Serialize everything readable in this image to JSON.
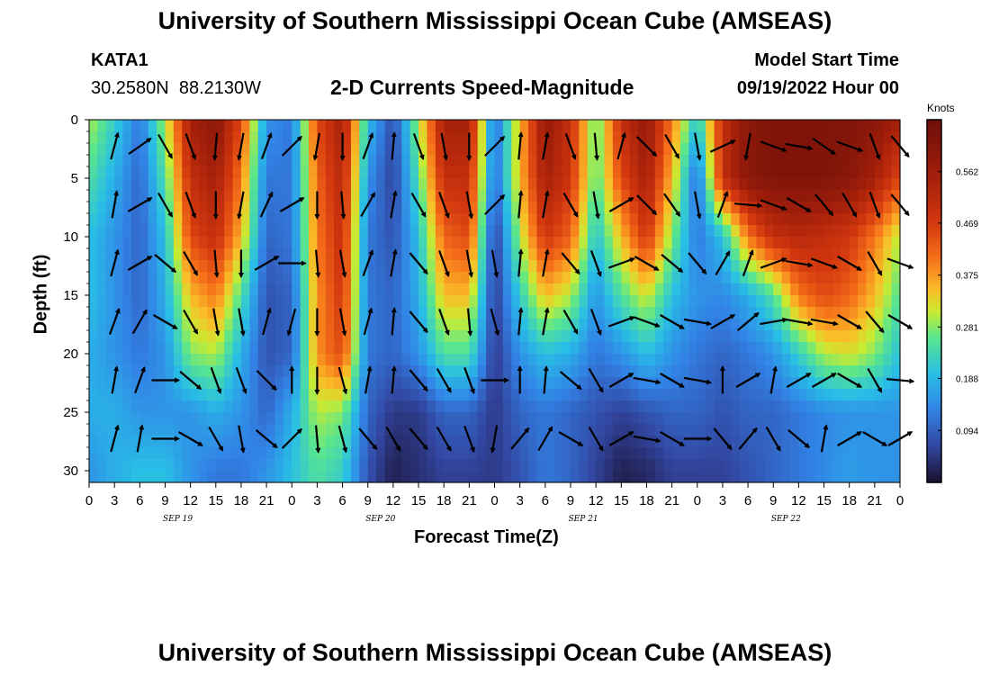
{
  "page": {
    "title": "University of Southern Mississippi Ocean Cube (AMSEAS)",
    "station_id": "KATA1",
    "station_coords": "30.2580N  88.2130W",
    "subtitle": "2-D Currents Speed-Magnitude",
    "model_start_label": "Model Start Time",
    "model_start_value": "09/19/2022 Hour 00",
    "bottom_title": "University of Southern Mississippi Ocean Cube (AMSEAS)"
  },
  "chart_data": {
    "type": "heatmap",
    "title": "2-D Currents Speed-Magnitude",
    "xlabel": "Forecast Time(Z)",
    "ylabel": "Depth (ft)",
    "x_unit": "hours since 09/19/2022 00Z",
    "xlim": [
      0,
      96
    ],
    "ylim": [
      0,
      31
    ],
    "y_inverted": true,
    "x_ticks": [
      0,
      3,
      6,
      9,
      12,
      15,
      18,
      21,
      24,
      27,
      30,
      33,
      36,
      39,
      42,
      45,
      48,
      51,
      54,
      57,
      60,
      63,
      66,
      69,
      72,
      75,
      78,
      81,
      84,
      87,
      90,
      93,
      96
    ],
    "x_tick_labels": [
      "0",
      "3",
      "6",
      "9",
      "12",
      "15",
      "18",
      "21",
      "0",
      "3",
      "6",
      "9",
      "12",
      "15",
      "18",
      "21",
      "0",
      "3",
      "6",
      "9",
      "12",
      "15",
      "18",
      "21",
      "0",
      "3",
      "6",
      "9",
      "12",
      "15",
      "18",
      "21",
      "0"
    ],
    "y_ticks": [
      0,
      5,
      10,
      15,
      20,
      25,
      30
    ],
    "y_tick_labels": [
      "0",
      "5",
      "10",
      "15",
      "20",
      "25",
      "30"
    ],
    "day_labels": [
      {
        "label": "SEP 19",
        "x": 10.5
      },
      {
        "label": "SEP 20",
        "x": 34.5
      },
      {
        "label": "SEP 21",
        "x": 58.5
      },
      {
        "label": "SEP 22",
        "x": 82.5
      }
    ],
    "colorbar": {
      "unit_label": "Knots",
      "min": 0,
      "max": 0.656,
      "ticks": [
        0.094,
        0.188,
        0.281,
        0.375,
        0.469,
        0.562
      ],
      "tick_labels": [
        "0.094",
        "0.188",
        "0.281",
        "0.375",
        "0.469",
        "0.562"
      ]
    },
    "speed_field": {
      "description": "approximate current speed (knots) sampled every 3 h (columns) at depths 0,5,10,15,20,25,30 ft (rows)",
      "times": [
        0,
        3,
        6,
        9,
        12,
        15,
        18,
        21,
        24,
        27,
        30,
        33,
        36,
        39,
        42,
        45,
        48,
        51,
        54,
        57,
        60,
        63,
        66,
        69,
        72,
        75,
        78,
        81,
        84,
        87,
        90,
        93,
        96
      ],
      "depths": [
        0,
        5,
        10,
        15,
        20,
        25,
        30
      ],
      "values": [
        [
          0.3,
          0.22,
          0.12,
          0.3,
          0.55,
          0.6,
          0.45,
          0.15,
          0.12,
          0.45,
          0.55,
          0.2,
          0.07,
          0.3,
          0.55,
          0.55,
          0.1,
          0.35,
          0.58,
          0.5,
          0.25,
          0.5,
          0.58,
          0.4,
          0.2,
          0.5,
          0.6,
          0.62,
          0.62,
          0.62,
          0.62,
          0.6,
          0.55
        ],
        [
          0.25,
          0.18,
          0.1,
          0.25,
          0.5,
          0.55,
          0.4,
          0.12,
          0.12,
          0.42,
          0.52,
          0.15,
          0.06,
          0.25,
          0.5,
          0.5,
          0.1,
          0.35,
          0.55,
          0.48,
          0.25,
          0.45,
          0.55,
          0.35,
          0.1,
          0.5,
          0.6,
          0.62,
          0.62,
          0.62,
          0.6,
          0.55,
          0.45
        ],
        [
          0.2,
          0.15,
          0.1,
          0.2,
          0.45,
          0.5,
          0.35,
          0.1,
          0.12,
          0.4,
          0.5,
          0.12,
          0.08,
          0.2,
          0.42,
          0.45,
          0.05,
          0.3,
          0.48,
          0.42,
          0.2,
          0.35,
          0.48,
          0.28,
          0.12,
          0.2,
          0.4,
          0.5,
          0.52,
          0.5,
          0.48,
          0.4,
          0.3
        ],
        [
          0.2,
          0.15,
          0.1,
          0.18,
          0.35,
          0.4,
          0.25,
          0.08,
          0.1,
          0.38,
          0.48,
          0.12,
          0.1,
          0.18,
          0.35,
          0.35,
          0.05,
          0.22,
          0.35,
          0.3,
          0.15,
          0.25,
          0.32,
          0.2,
          0.15,
          0.14,
          0.18,
          0.25,
          0.4,
          0.45,
          0.42,
          0.35,
          0.25
        ],
        [
          0.18,
          0.15,
          0.12,
          0.15,
          0.28,
          0.3,
          0.18,
          0.08,
          0.1,
          0.38,
          0.45,
          0.12,
          0.1,
          0.15,
          0.25,
          0.25,
          0.05,
          0.15,
          0.2,
          0.18,
          0.12,
          0.15,
          0.2,
          0.15,
          0.12,
          0.1,
          0.12,
          0.15,
          0.22,
          0.3,
          0.32,
          0.28,
          0.2
        ],
        [
          0.18,
          0.18,
          0.15,
          0.15,
          0.15,
          0.18,
          0.15,
          0.1,
          0.18,
          0.3,
          0.28,
          0.1,
          0.05,
          0.05,
          0.1,
          0.1,
          0.05,
          0.1,
          0.12,
          0.1,
          0.08,
          0.06,
          0.08,
          0.1,
          0.1,
          0.08,
          0.1,
          0.1,
          0.12,
          0.14,
          0.15,
          0.15,
          0.15
        ],
        [
          0.15,
          0.18,
          0.2,
          0.2,
          0.15,
          0.12,
          0.12,
          0.15,
          0.2,
          0.25,
          0.22,
          0.08,
          0.02,
          0.04,
          0.06,
          0.06,
          0.05,
          0.08,
          0.12,
          0.1,
          0.06,
          0.02,
          0.03,
          0.06,
          0.06,
          0.06,
          0.08,
          0.1,
          0.12,
          0.14,
          0.16,
          0.15,
          0.15
        ]
      ]
    },
    "arrow_times": [
      3,
      6,
      9,
      12,
      15,
      18,
      21,
      24,
      27,
      30,
      33,
      36,
      39,
      42,
      45,
      48,
      51,
      54,
      57,
      60,
      63,
      66,
      69,
      72,
      75,
      78,
      81,
      84,
      87,
      90,
      93,
      96
    ],
    "arrow_depths": [
      1.5,
      6.5,
      11.5,
      16.5,
      21.5,
      26.5
    ],
    "arrow_directions_deg": {
      "description": "current flow direction, degrees clockwise from north (0 = up on plot)",
      "rows": [
        [
          15,
          55,
          150,
          160,
          185,
          190,
          20,
          45,
          190,
          180,
          20,
          5,
          160,
          170,
          180,
          45,
          5,
          10,
          160,
          175,
          15,
          135,
          150,
          170,
          65,
          190,
          110,
          100,
          125,
          110,
          160,
          140
        ],
        [
          10,
          60,
          150,
          160,
          180,
          190,
          25,
          60,
          180,
          175,
          30,
          10,
          150,
          160,
          170,
          45,
          5,
          10,
          150,
          170,
          60,
          135,
          145,
          170,
          20,
          95,
          110,
          120,
          140,
          150,
          160,
          140
        ],
        [
          15,
          60,
          130,
          150,
          175,
          180,
          60,
          90,
          175,
          170,
          20,
          10,
          140,
          160,
          170,
          170,
          5,
          10,
          140,
          160,
          70,
          120,
          130,
          140,
          30,
          20,
          70,
          100,
          110,
          120,
          150,
          110
        ],
        [
          20,
          30,
          120,
          150,
          170,
          170,
          15,
          195,
          180,
          170,
          15,
          5,
          140,
          160,
          175,
          165,
          5,
          10,
          150,
          160,
          70,
          110,
          120,
          100,
          60,
          50,
          80,
          100,
          100,
          120,
          140,
          120
        ],
        [
          10,
          20,
          90,
          130,
          160,
          160,
          135,
          0,
          180,
          165,
          10,
          5,
          140,
          150,
          160,
          90,
          0,
          5,
          130,
          150,
          60,
          100,
          120,
          100,
          0,
          60,
          10,
          60,
          60,
          120,
          150,
          95
        ],
        [
          15,
          10,
          90,
          120,
          150,
          170,
          130,
          45,
          175,
          165,
          140,
          150,
          140,
          150,
          160,
          190,
          40,
          30,
          120,
          150,
          60,
          100,
          120,
          90,
          140,
          40,
          150,
          130,
          10,
          60,
          120,
          60
        ]
      ]
    }
  }
}
